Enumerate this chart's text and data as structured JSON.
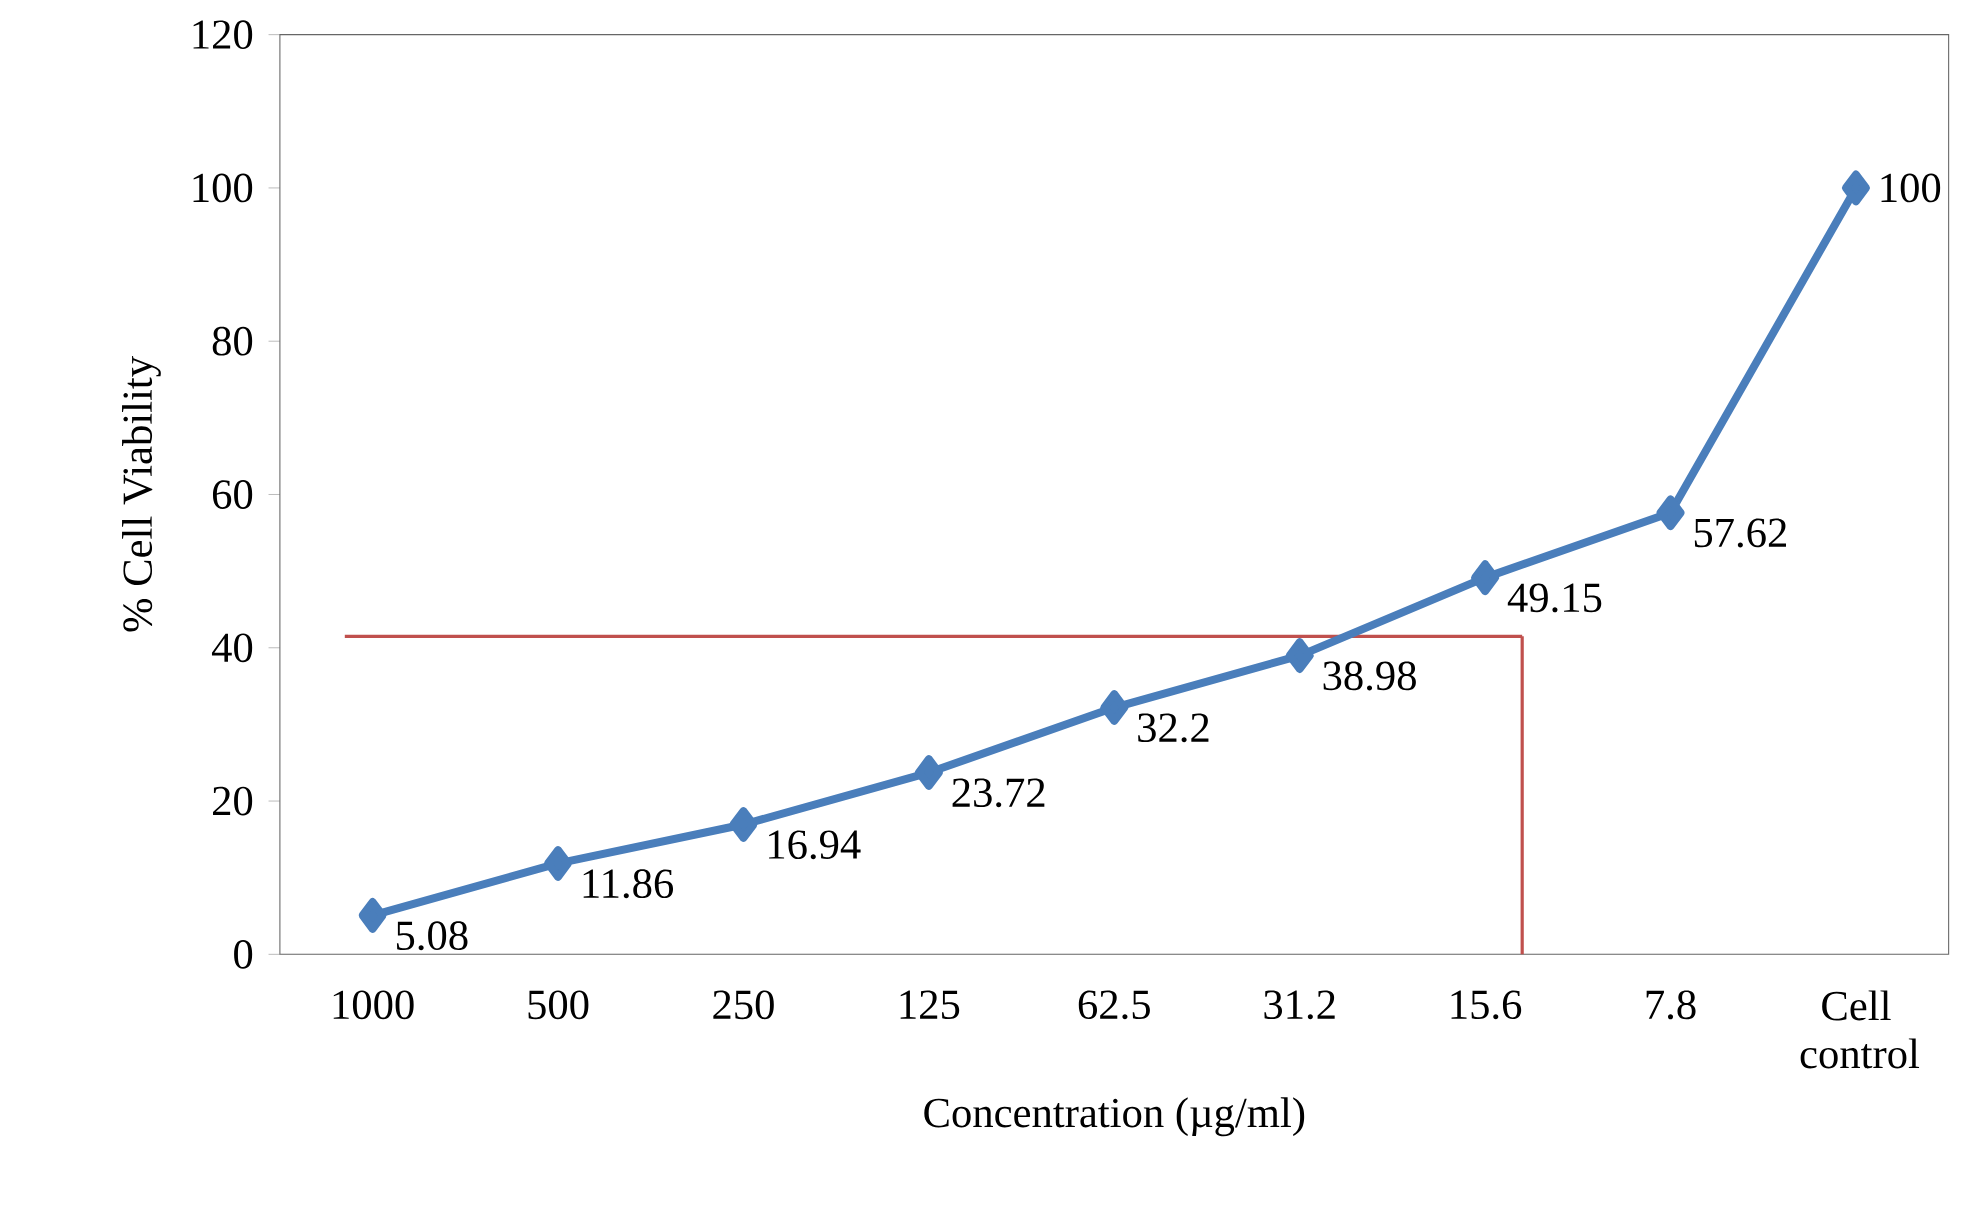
{
  "chart_data": {
    "type": "line",
    "xlabel": "Concentration (µg/ml)",
    "ylabel": "% Cell Viability",
    "categories": [
      "1000",
      "500",
      "250",
      "125",
      "62.5",
      "31.2",
      "15.6",
      "7.8",
      "Cell control"
    ],
    "values": [
      5.08,
      11.86,
      16.94,
      23.72,
      32.2,
      38.98,
      49.15,
      57.62,
      100
    ],
    "color": "#4a7ebb",
    "marker": "diamond",
    "line_style": "solid",
    "data_labels": true,
    "ylim": [
      0,
      120
    ],
    "yticks": [
      0,
      20,
      40,
      60,
      80,
      100,
      120
    ],
    "ref_lines": [
      {
        "axis": "y",
        "value": 41.5,
        "color": "#c0504d"
      }
    ]
  }
}
